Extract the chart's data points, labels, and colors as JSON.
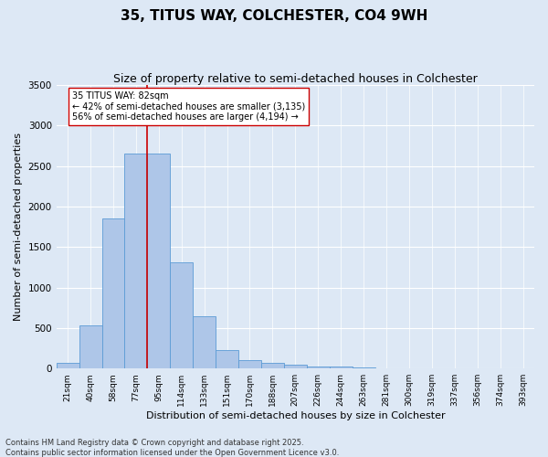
{
  "title": "35, TITUS WAY, COLCHESTER, CO4 9WH",
  "subtitle": "Size of property relative to semi-detached houses in Colchester",
  "xlabel": "Distribution of semi-detached houses by size in Colchester",
  "ylabel": "Number of semi-detached properties",
  "categories": [
    "21sqm",
    "40sqm",
    "58sqm",
    "77sqm",
    "95sqm",
    "114sqm",
    "133sqm",
    "151sqm",
    "170sqm",
    "188sqm",
    "207sqm",
    "226sqm",
    "244sqm",
    "263sqm",
    "281sqm",
    "300sqm",
    "319sqm",
    "337sqm",
    "356sqm",
    "374sqm",
    "393sqm"
  ],
  "values": [
    65,
    530,
    1850,
    2650,
    2650,
    1310,
    640,
    230,
    105,
    65,
    45,
    20,
    20,
    10,
    5,
    0,
    0,
    0,
    0,
    0,
    0
  ],
  "bar_color": "#aec6e8",
  "bar_edge_color": "#5b9bd5",
  "vline_x_index": 3.5,
  "vline_color": "#cc0000",
  "annotation_text": "35 TITUS WAY: 82sqm\n← 42% of semi-detached houses are smaller (3,135)\n56% of semi-detached houses are larger (4,194) →",
  "annotation_box_color": "#ffffff",
  "annotation_box_edge_color": "#cc0000",
  "ylim": [
    0,
    3500
  ],
  "yticks": [
    0,
    500,
    1000,
    1500,
    2000,
    2500,
    3000,
    3500
  ],
  "background_color": "#dde8f5",
  "grid_color": "#ffffff",
  "footer_line1": "Contains HM Land Registry data © Crown copyright and database right 2025.",
  "footer_line2": "Contains public sector information licensed under the Open Government Licence v3.0.",
  "title_fontsize": 11,
  "subtitle_fontsize": 9,
  "axis_label_fontsize": 8,
  "tick_fontsize": 6.5,
  "annotation_fontsize": 7,
  "footer_fontsize": 6
}
